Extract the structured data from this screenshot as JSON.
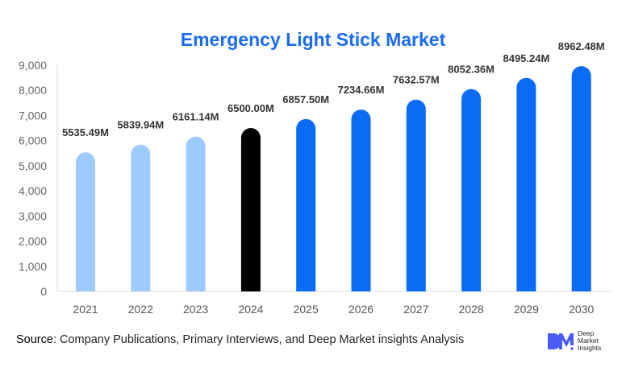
{
  "chart_data": {
    "type": "bar",
    "title": "Emergency Light Stick Market",
    "categories": [
      "2021",
      "2022",
      "2023",
      "2024",
      "2025",
      "2026",
      "2027",
      "2028",
      "2029",
      "2030"
    ],
    "values": [
      5535.49,
      5839.94,
      6161.14,
      6500.0,
      6857.5,
      7234.66,
      7632.57,
      8052.36,
      8495.24,
      8962.48
    ],
    "data_labels": [
      "5535.49M",
      "5839.94M",
      "6161.14M",
      "6500.00M",
      "6857.50M",
      "7234.66M",
      "7632.57M",
      "8052.36M",
      "8495.24M",
      "8962.48M"
    ],
    "bar_colors": [
      "#9ecbff",
      "#9ecbff",
      "#9ecbff",
      "#000000",
      "#0a6cf5",
      "#0a6cf5",
      "#0a6cf5",
      "#0a6cf5",
      "#0a6cf5",
      "#0a6cf5"
    ],
    "yticks": [
      "0",
      "1,000",
      "2,000",
      "3,000",
      "4,000",
      "5,000",
      "6,000",
      "7,000",
      "8,000",
      "9,000"
    ],
    "ylim": [
      0,
      9000
    ],
    "xlabel": "",
    "ylabel": "",
    "grid": false
  },
  "source": {
    "label": "Source",
    "text": ": Company Publications, Primary Interviews, and Deep Market insights Analysis"
  },
  "logo": {
    "mark": "DM",
    "lines": [
      "Deep",
      "Market",
      "Insights"
    ]
  }
}
